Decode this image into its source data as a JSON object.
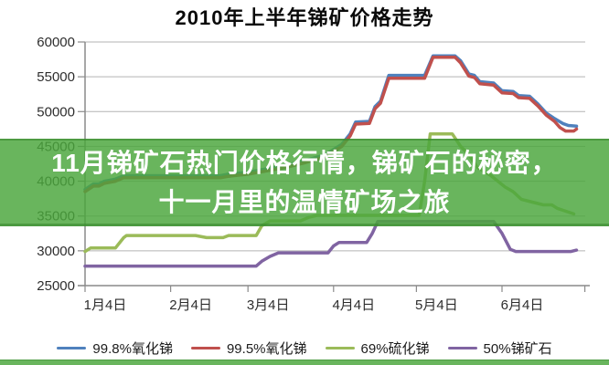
{
  "overlay": {
    "line1": "11月锑矿石热门价格行情，锑矿石的秘密，",
    "line2": "十一月里的温情矿场之旅"
  },
  "colors": {
    "band_green": "#4aa63c",
    "series_blue": "#4f81bd",
    "series_red": "#c0504d",
    "series_green": "#9bbb59",
    "series_purple": "#8064a2",
    "grid_gray": "#b3b3b3",
    "axis_gray": "#8a8a8a"
  },
  "chart_data": {
    "type": "line",
    "title": "2010年上半年锑矿价格走势",
    "xlabel": "",
    "ylabel": "",
    "grid": true,
    "legend_position": "bottom",
    "y_axis": {
      "min": 25000,
      "max": 60000,
      "step": 5000,
      "tick_labels": [
        "60000",
        "55000",
        "50000",
        "45000",
        "40000",
        "35000",
        "30000",
        "25000"
      ]
    },
    "x_axis": {
      "unit": "days since 1月4日",
      "tick_days": [
        0,
        31,
        59,
        90,
        120,
        151
      ],
      "tick_labels": [
        "1月4日",
        "2月4日",
        "3月4日",
        "4月4日",
        "5月4日",
        "6月4日"
      ],
      "extra_unlabeled_tick_day": 181,
      "data_end_day": 178
    },
    "series": [
      {
        "name": "99.8%氧化锑",
        "color": "#4f81bd",
        "points": [
          [
            0,
            38800
          ],
          [
            3,
            39600
          ],
          [
            5,
            39600
          ],
          [
            7,
            40000
          ],
          [
            11,
            40300
          ],
          [
            14,
            40800
          ],
          [
            49,
            40800
          ],
          [
            52,
            41000
          ],
          [
            59,
            41300
          ],
          [
            66,
            41800
          ],
          [
            73,
            42300
          ],
          [
            80,
            43000
          ],
          [
            87,
            43800
          ],
          [
            93,
            45300
          ],
          [
            96,
            46800
          ],
          [
            98,
            48500
          ],
          [
            103,
            48600
          ],
          [
            105,
            50700
          ],
          [
            107,
            51500
          ],
          [
            110,
            55200
          ],
          [
            123,
            55200
          ],
          [
            126,
            58000
          ],
          [
            134,
            58000
          ],
          [
            136,
            57300
          ],
          [
            139,
            55400
          ],
          [
            141,
            55200
          ],
          [
            143,
            54300
          ],
          [
            148,
            54100
          ],
          [
            151,
            53000
          ],
          [
            155,
            52900
          ],
          [
            157,
            52300
          ],
          [
            161,
            52200
          ],
          [
            164,
            51100
          ],
          [
            167,
            49800
          ],
          [
            170,
            49000
          ],
          [
            173,
            48300
          ],
          [
            175,
            48000
          ],
          [
            178,
            47900
          ]
        ]
      },
      {
        "name": "99.5%氧化锑",
        "color": "#c0504d",
        "points": [
          [
            0,
            38500
          ],
          [
            3,
            39300
          ],
          [
            5,
            39300
          ],
          [
            7,
            39700
          ],
          [
            11,
            40000
          ],
          [
            14,
            40500
          ],
          [
            49,
            40500
          ],
          [
            52,
            40700
          ],
          [
            59,
            41000
          ],
          [
            66,
            41500
          ],
          [
            73,
            42000
          ],
          [
            80,
            42700
          ],
          [
            87,
            43500
          ],
          [
            93,
            45000
          ],
          [
            96,
            46500
          ],
          [
            98,
            48200
          ],
          [
            103,
            48300
          ],
          [
            105,
            50400
          ],
          [
            107,
            51200
          ],
          [
            110,
            54800
          ],
          [
            123,
            54800
          ],
          [
            126,
            57800
          ],
          [
            134,
            57800
          ],
          [
            136,
            57000
          ],
          [
            139,
            55100
          ],
          [
            141,
            54900
          ],
          [
            143,
            54000
          ],
          [
            148,
            53800
          ],
          [
            151,
            52700
          ],
          [
            155,
            52600
          ],
          [
            157,
            52000
          ],
          [
            161,
            51900
          ],
          [
            164,
            50800
          ],
          [
            167,
            49500
          ],
          [
            170,
            48600
          ],
          [
            172,
            47700
          ],
          [
            174,
            47200
          ],
          [
            177,
            47200
          ],
          [
            178,
            47500
          ]
        ]
      },
      {
        "name": "69%硫化锑",
        "color": "#9bbb59",
        "points": [
          [
            0,
            29900
          ],
          [
            2,
            30400
          ],
          [
            11,
            30400
          ],
          [
            14,
            31900
          ],
          [
            15,
            32200
          ],
          [
            40,
            32200
          ],
          [
            44,
            31900
          ],
          [
            50,
            31900
          ],
          [
            52,
            32200
          ],
          [
            62,
            32200
          ],
          [
            64,
            33600
          ],
          [
            67,
            34300
          ],
          [
            78,
            34300
          ],
          [
            81,
            34800
          ],
          [
            84,
            35100
          ],
          [
            121,
            35100
          ],
          [
            123,
            40000
          ],
          [
            125,
            46800
          ],
          [
            133,
            46800
          ],
          [
            136,
            45000
          ],
          [
            139,
            43800
          ],
          [
            142,
            42000
          ],
          [
            147,
            40800
          ],
          [
            152,
            39200
          ],
          [
            155,
            38500
          ],
          [
            158,
            37400
          ],
          [
            162,
            37000
          ],
          [
            166,
            36600
          ],
          [
            169,
            36600
          ],
          [
            171,
            36100
          ],
          [
            174,
            35700
          ],
          [
            177,
            35300
          ]
        ]
      },
      {
        "name": "50%锑矿石",
        "color": "#8064a2",
        "points": [
          [
            0,
            27800
          ],
          [
            62,
            27800
          ],
          [
            64,
            28500
          ],
          [
            67,
            29200
          ],
          [
            70,
            29700
          ],
          [
            88,
            29700
          ],
          [
            90,
            30700
          ],
          [
            92,
            31200
          ],
          [
            102,
            31200
          ],
          [
            104,
            32500
          ],
          [
            106,
            34200
          ],
          [
            148,
            34200
          ],
          [
            151,
            32500
          ],
          [
            154,
            30200
          ],
          [
            156,
            29900
          ],
          [
            176,
            29900
          ],
          [
            178,
            30100
          ]
        ]
      }
    ]
  }
}
